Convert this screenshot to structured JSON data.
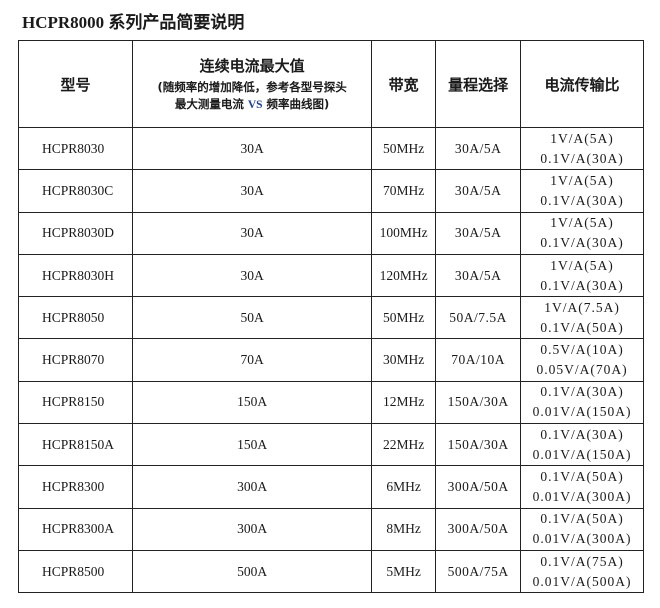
{
  "title": "HCPR8000 系列产品简要说明",
  "headers": {
    "model": "型号",
    "current_main": "连续电流最大值",
    "current_sub1": "(随频率的增加降低，参考各型号探头",
    "current_sub2a": "最大测量电流 ",
    "current_vs": "VS",
    "current_sub2b": " 频率曲线图)",
    "bandwidth": "带宽",
    "range": "量程选择",
    "ratio": "电流传输比"
  },
  "rows": [
    {
      "model": "HCPR8030",
      "current": "30A",
      "bandwidth": "50MHz",
      "range": "30A/5A",
      "ratio1": "1V/A(5A)",
      "ratio2": "0.1V/A(30A)"
    },
    {
      "model": "HCPR8030C",
      "current": "30A",
      "bandwidth": "70MHz",
      "range": "30A/5A",
      "ratio1": "1V/A(5A)",
      "ratio2": "0.1V/A(30A)"
    },
    {
      "model": "HCPR8030D",
      "current": "30A",
      "bandwidth": "100MHz",
      "range": "30A/5A",
      "ratio1": "1V/A(5A)",
      "ratio2": "0.1V/A(30A)"
    },
    {
      "model": "HCPR8030H",
      "current": "30A",
      "bandwidth": "120MHz",
      "range": "30A/5A",
      "ratio1": "1V/A(5A)",
      "ratio2": "0.1V/A(30A)"
    },
    {
      "model": "HCPR8050",
      "current": "50A",
      "bandwidth": "50MHz",
      "range": "50A/7.5A",
      "ratio1": "1V/A(7.5A)",
      "ratio2": "0.1V/A(50A)"
    },
    {
      "model": "HCPR8070",
      "current": "70A",
      "bandwidth": "30MHz",
      "range": "70A/10A",
      "ratio1": "0.5V/A(10A)",
      "ratio2": "0.05V/A(70A)"
    },
    {
      "model": "HCPR8150",
      "current": "150A",
      "bandwidth": "12MHz",
      "range": "150A/30A",
      "ratio1": "0.1V/A(30A)",
      "ratio2": "0.01V/A(150A)"
    },
    {
      "model": "HCPR8150A",
      "current": "150A",
      "bandwidth": "22MHz",
      "range": "150A/30A",
      "ratio1": "0.1V/A(30A)",
      "ratio2": "0.01V/A(150A)"
    },
    {
      "model": "HCPR8300",
      "current": "300A",
      "bandwidth": "6MHz",
      "range": "300A/50A",
      "ratio1": "0.1V/A(50A)",
      "ratio2": "0.01V/A(300A)"
    },
    {
      "model": "HCPR8300A",
      "current": "300A",
      "bandwidth": "8MHz",
      "range": "300A/50A",
      "ratio1": "0.1V/A(50A)",
      "ratio2": "0.01V/A(300A)"
    },
    {
      "model": "HCPR8500",
      "current": "500A",
      "bandwidth": "5MHz",
      "range": "500A/75A",
      "ratio1": "0.1V/A(75A)",
      "ratio2": "0.01V/A(500A)"
    }
  ]
}
